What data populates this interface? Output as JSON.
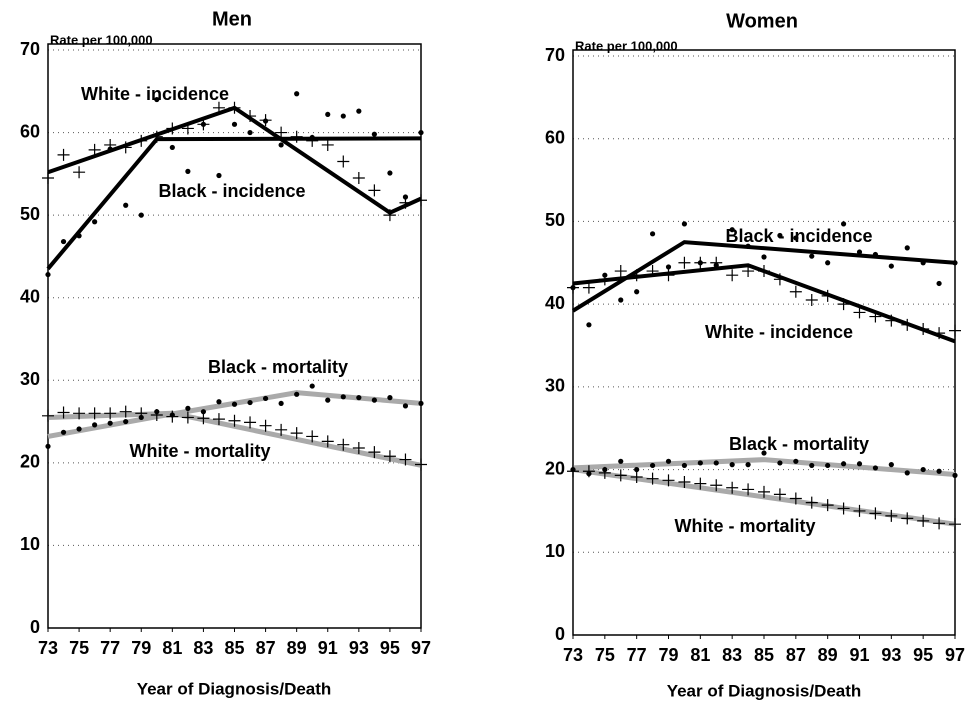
{
  "chart_data": [
    {
      "type": "line",
      "title": "Men",
      "y_axis_label": "Rate per 100,000",
      "x_label": "Year of Diagnosis/Death",
      "x": [
        73,
        74,
        75,
        76,
        77,
        78,
        79,
        80,
        81,
        82,
        83,
        84,
        85,
        86,
        87,
        88,
        89,
        90,
        91,
        92,
        93,
        94,
        95,
        96,
        97
      ],
      "xlim": [
        73,
        97
      ],
      "xticks": [
        73,
        75,
        77,
        79,
        81,
        83,
        85,
        87,
        89,
        91,
        93,
        95,
        97
      ],
      "ylim": [
        0,
        70
      ],
      "yticks": [
        0,
        10,
        20,
        30,
        40,
        50,
        60,
        70
      ],
      "grid": true,
      "series": [
        {
          "name": "White - incidence",
          "marker": "plus",
          "color": "#000",
          "line_color": "#000",
          "values": [
            54.5,
            57.3,
            55.2,
            57.9,
            58.5,
            58.2,
            59,
            59.5,
            60.5,
            60.5,
            61,
            63,
            63,
            62,
            61.5,
            60,
            59.5,
            59,
            58.5,
            56.5,
            54.5,
            53,
            50,
            51.5,
            51.8
          ],
          "fit": {
            "x": [
              73,
              85,
              95,
              97
            ],
            "values": [
              55.2,
              63,
              50.3,
              52
            ]
          }
        },
        {
          "name": "Black - incidence",
          "marker": "dot",
          "color": "#000",
          "line_color": "#000",
          "values": [
            42.8,
            46.8,
            47.5,
            49.2,
            58,
            51.2,
            50,
            64,
            58.2,
            55.3,
            61,
            54.8,
            61,
            60,
            61.4,
            58.5,
            64.7,
            59.4,
            62.2,
            62,
            62.6,
            59.8,
            55.1,
            52.2,
            60
          ],
          "fit": {
            "x": [
              73,
              80,
              97
            ],
            "values": [
              43.5,
              59.2,
              59.3
            ]
          }
        },
        {
          "name": "Black - mortality",
          "marker": "dot",
          "color": "#000",
          "line_color": "#aaaaaa",
          "values": [
            22,
            23.7,
            24.1,
            24.6,
            24.8,
            25,
            25.5,
            26.2,
            25.8,
            26.6,
            26.2,
            27.4,
            27.1,
            27.3,
            27.8,
            27.2,
            28.3,
            29.3,
            27.6,
            28,
            27.9,
            27.6,
            27.9,
            26.9,
            27.2
          ],
          "fit": {
            "x": [
              73,
              80,
              89,
              97
            ],
            "values": [
              23.2,
              25.6,
              28.5,
              27.2
            ]
          }
        },
        {
          "name": "White - mortality",
          "marker": "plus",
          "color": "#000",
          "line_color": "#aaaaaa",
          "values": [
            25.7,
            26.1,
            26,
            26,
            26,
            26.2,
            26,
            25.8,
            25.6,
            25.5,
            25.4,
            25.3,
            25.1,
            24.9,
            24.5,
            24,
            23.6,
            23.2,
            22.6,
            22.2,
            21.8,
            21.3,
            20.8,
            20.4,
            19.8
          ],
          "fit": {
            "x": [
              73,
              81,
              97
            ],
            "values": [
              25.5,
              26,
              19.7
            ]
          }
        }
      ]
    },
    {
      "type": "line",
      "title": "Women",
      "y_axis_label": "Rate per 100,000",
      "x_label": "Year of Diagnosis/Death",
      "x": [
        73,
        74,
        75,
        76,
        77,
        78,
        79,
        80,
        81,
        82,
        83,
        84,
        85,
        86,
        87,
        88,
        89,
        90,
        91,
        92,
        93,
        94,
        95,
        96,
        97
      ],
      "xlim": [
        73,
        97
      ],
      "xticks": [
        73,
        75,
        77,
        79,
        81,
        83,
        85,
        87,
        89,
        91,
        93,
        95,
        97
      ],
      "ylim": [
        0,
        70
      ],
      "yticks": [
        0,
        10,
        20,
        30,
        40,
        50,
        60,
        70
      ],
      "grid": true,
      "series": [
        {
          "name": "White - incidence",
          "marker": "plus",
          "color": "#000",
          "line_color": "#000",
          "values": [
            42,
            42,
            43,
            44,
            43.5,
            44,
            43.5,
            45,
            45,
            45,
            43.5,
            44,
            44,
            43,
            41.5,
            40.5,
            41,
            40,
            39,
            38.5,
            38,
            37.5,
            37,
            36.5,
            36.8
          ],
          "fit": {
            "x": [
              73,
              84,
              97
            ],
            "values": [
              42.5,
              44.7,
              35.5
            ]
          }
        },
        {
          "name": "Black - incidence",
          "marker": "dot",
          "color": "#000",
          "line_color": "#000",
          "values": [
            42,
            37.5,
            43.5,
            40.5,
            41.5,
            48.5,
            44.5,
            49.7,
            45,
            44.7,
            49,
            47,
            45.7,
            48.3,
            48,
            45.8,
            45,
            49.7,
            46.3,
            46,
            44.6,
            46.8,
            45,
            42.5,
            45
          ],
          "fit": {
            "x": [
              73,
              80,
              97
            ],
            "values": [
              39.2,
              47.5,
              45
            ]
          }
        },
        {
          "name": "Black - mortality",
          "marker": "dot",
          "color": "#000",
          "line_color": "#aaaaaa",
          "values": [
            20,
            19.5,
            20,
            21,
            20,
            20.5,
            21,
            20.5,
            20.8,
            20.8,
            20.6,
            20.6,
            22,
            20.8,
            21,
            20.5,
            20.5,
            20.7,
            20.7,
            20.2,
            20.6,
            19.6,
            20,
            19.8,
            19.3
          ],
          "fit": {
            "x": [
              73,
              85,
              97
            ],
            "values": [
              20.2,
              21.2,
              19.4
            ]
          }
        },
        {
          "name": "White - mortality",
          "marker": "plus",
          "color": "#000",
          "line_color": "#aaaaaa",
          "values": [
            19.8,
            19.8,
            19.6,
            19.3,
            19.1,
            18.9,
            18.7,
            18.5,
            18.3,
            18.1,
            17.8,
            17.6,
            17.3,
            17,
            16.5,
            16,
            15.7,
            15.3,
            15,
            14.7,
            14.4,
            14.1,
            13.8,
            13.5,
            13.4
          ],
          "fit": {
            "x": [
              73,
              97
            ],
            "values": [
              20,
              13.4
            ]
          }
        }
      ]
    }
  ]
}
